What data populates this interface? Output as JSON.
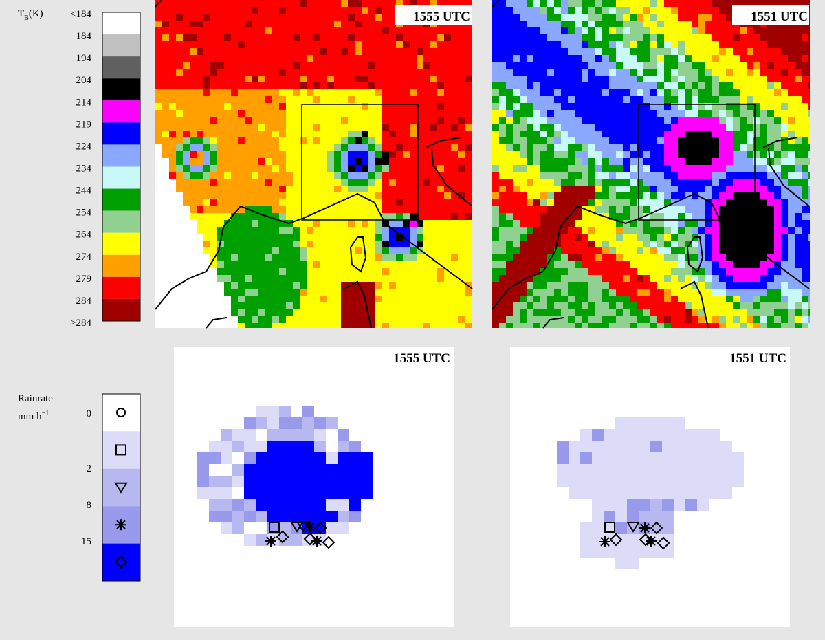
{
  "colorbar": {
    "title": {
      "main": "T",
      "sub": "B",
      "unit": "(K)"
    },
    "labels": [
      "<184",
      "184",
      "194",
      "204",
      "214",
      "219",
      "224",
      "234",
      "244",
      "254",
      "264",
      "274",
      "279",
      "284",
      ">284"
    ],
    "colors": [
      "#ffffff",
      "#c0c0c0",
      "#606060",
      "#000000",
      "#ff00ff",
      "#0000ff",
      "#8aa8ff",
      "#c8f8f8",
      "#00a000",
      "#90d090",
      "#ffff00",
      "#ffa000",
      "#ff0000",
      "#a00000"
    ]
  },
  "rain_legend": {
    "title": "Rainrate",
    "unit": {
      "main": "mm h",
      "sup": "−1"
    },
    "labels": [
      "0",
      "2",
      "8",
      "15"
    ],
    "colors": [
      "#ffffff",
      "#dcdcf8",
      "#b8b8f0",
      "#9a9aec",
      "#0000ff"
    ]
  },
  "panels": [
    {
      "time": "1555 UTC"
    },
    {
      "time": "1551 UTC"
    },
    {
      "time": "1555 UTC"
    },
    {
      "time": "1551 UTC"
    }
  ]
}
